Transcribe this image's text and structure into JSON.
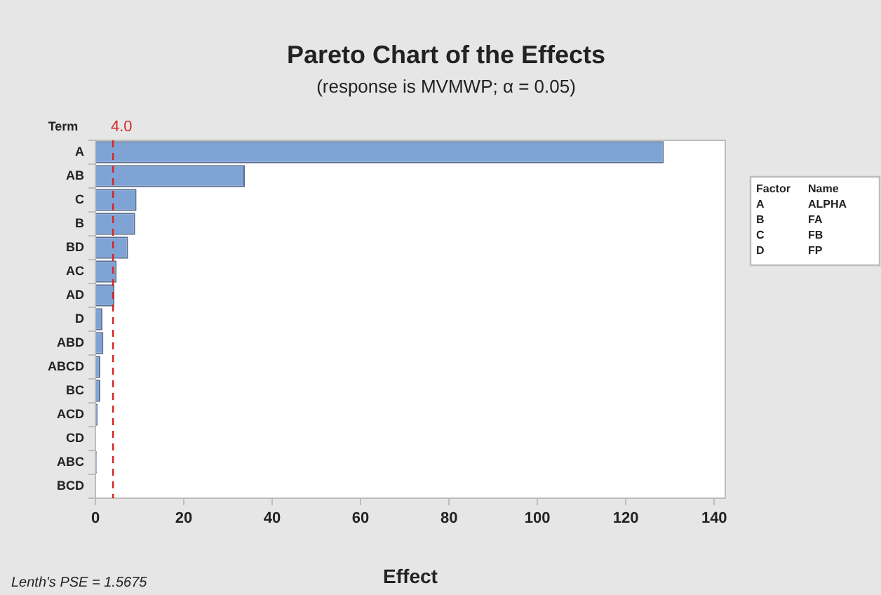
{
  "chart_data": {
    "type": "bar",
    "orientation": "horizontal",
    "title": "Pareto Chart of the Effects",
    "subtitle": "(response is MVMWP; α = 0.05)",
    "xlabel": "Effect",
    "ylabel": "Term",
    "categories": [
      "A",
      "AB",
      "C",
      "B",
      "BD",
      "AC",
      "AD",
      "D",
      "ABD",
      "ABCD",
      "BC",
      "ACD",
      "CD",
      "ABC",
      "BCD"
    ],
    "values": [
      128.6,
      33.8,
      9.3,
      9.0,
      7.4,
      4.8,
      4.3,
      1.6,
      1.8,
      1.1,
      1.1,
      0.5,
      null,
      0.3,
      0.1
    ],
    "color": "#7fa3d4",
    "xlim": [
      0,
      142.5
    ],
    "xticks": [
      0,
      20,
      40,
      60,
      80,
      100,
      120,
      140
    ],
    "ref_lines": [
      {
        "axis": "x",
        "value": 4.0,
        "label": "4.0",
        "color": "#d62728",
        "line_style": "dashed"
      }
    ],
    "annotations": [
      "Factor",
      "Name",
      "A",
      "ALPHA",
      "B",
      "FA",
      "C",
      "FB",
      "D",
      "FP",
      "Lenth's PSE = 1.5675"
    ],
    "grid": false,
    "legend": false
  }
}
